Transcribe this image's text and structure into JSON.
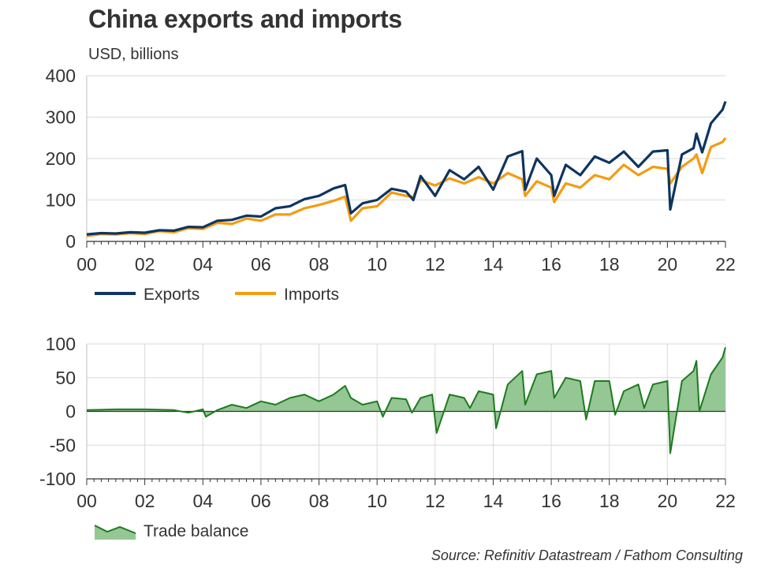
{
  "title": "China exports and imports",
  "subtitle": "USD, billions",
  "source": "Source: Refinitiv Datastream / Fathom Consulting",
  "colors": {
    "exports": "#0e3560",
    "imports": "#f39c12",
    "balance_line": "#1e7a1e",
    "balance_fill": "#94c794",
    "grid": "#d9d9d9",
    "axis": "#333333"
  },
  "chart_data": [
    {
      "type": "line",
      "ylim": [
        0,
        400
      ],
      "yticks": [
        "400",
        "300",
        "200",
        "100",
        "0"
      ],
      "xlim": [
        2000,
        2022
      ],
      "xticks": [
        "00",
        "02",
        "04",
        "06",
        "08",
        "10",
        "12",
        "14",
        "16",
        "18",
        "20",
        "22"
      ],
      "grid": true,
      "legend_position": "bottom-left",
      "series": [
        {
          "name": "Exports",
          "points": [
            [
              2000.0,
              17
            ],
            [
              2000.5,
              20
            ],
            [
              2001.0,
              19
            ],
            [
              2001.5,
              22
            ],
            [
              2002.0,
              21
            ],
            [
              2002.5,
              27
            ],
            [
              2003.0,
              26
            ],
            [
              2003.5,
              35
            ],
            [
              2004.0,
              34
            ],
            [
              2004.5,
              50
            ],
            [
              2005.0,
              52
            ],
            [
              2005.5,
              62
            ],
            [
              2006.0,
              60
            ],
            [
              2006.5,
              80
            ],
            [
              2007.0,
              85
            ],
            [
              2007.5,
              102
            ],
            [
              2008.0,
              110
            ],
            [
              2008.5,
              128
            ],
            [
              2008.9,
              136
            ],
            [
              2009.1,
              68
            ],
            [
              2009.5,
              92
            ],
            [
              2010.0,
              100
            ],
            [
              2010.5,
              127
            ],
            [
              2011.0,
              120
            ],
            [
              2011.25,
              100
            ],
            [
              2011.5,
              158
            ],
            [
              2012.0,
              110
            ],
            [
              2012.5,
              172
            ],
            [
              2013.0,
              150
            ],
            [
              2013.5,
              180
            ],
            [
              2014.0,
              125
            ],
            [
              2014.5,
              205
            ],
            [
              2015.0,
              218
            ],
            [
              2015.1,
              125
            ],
            [
              2015.5,
              200
            ],
            [
              2016.0,
              160
            ],
            [
              2016.1,
              110
            ],
            [
              2016.5,
              185
            ],
            [
              2017.0,
              160
            ],
            [
              2017.5,
              205
            ],
            [
              2018.0,
              190
            ],
            [
              2018.5,
              217
            ],
            [
              2019.0,
              180
            ],
            [
              2019.5,
              217
            ],
            [
              2020.0,
              220
            ],
            [
              2020.1,
              77
            ],
            [
              2020.5,
              210
            ],
            [
              2020.9,
              225
            ],
            [
              2021.0,
              260
            ],
            [
              2021.2,
              215
            ],
            [
              2021.5,
              285
            ],
            [
              2021.9,
              318
            ],
            [
              2022.0,
              338
            ]
          ]
        },
        {
          "name": "Imports",
          "points": [
            [
              2000.0,
              13
            ],
            [
              2000.5,
              18
            ],
            [
              2001.0,
              17
            ],
            [
              2001.5,
              20
            ],
            [
              2002.0,
              18
            ],
            [
              2002.5,
              25
            ],
            [
              2003.0,
              22
            ],
            [
              2003.5,
              32
            ],
            [
              2004.0,
              30
            ],
            [
              2004.5,
              45
            ],
            [
              2005.0,
              42
            ],
            [
              2005.5,
              55
            ],
            [
              2006.0,
              50
            ],
            [
              2006.5,
              65
            ],
            [
              2007.0,
              65
            ],
            [
              2007.5,
              80
            ],
            [
              2008.0,
              88
            ],
            [
              2008.5,
              98
            ],
            [
              2008.9,
              108
            ],
            [
              2009.1,
              50
            ],
            [
              2009.5,
              80
            ],
            [
              2010.0,
              85
            ],
            [
              2010.5,
              118
            ],
            [
              2011.0,
              110
            ],
            [
              2011.25,
              107
            ],
            [
              2011.5,
              148
            ],
            [
              2012.0,
              135
            ],
            [
              2012.5,
              152
            ],
            [
              2013.0,
              140
            ],
            [
              2013.5,
              155
            ],
            [
              2014.0,
              140
            ],
            [
              2014.5,
              165
            ],
            [
              2015.0,
              150
            ],
            [
              2015.1,
              110
            ],
            [
              2015.5,
              145
            ],
            [
              2016.0,
              130
            ],
            [
              2016.1,
              95
            ],
            [
              2016.5,
              140
            ],
            [
              2017.0,
              130
            ],
            [
              2017.5,
              160
            ],
            [
              2018.0,
              150
            ],
            [
              2018.5,
              185
            ],
            [
              2019.0,
              160
            ],
            [
              2019.5,
              180
            ],
            [
              2020.0,
              175
            ],
            [
              2020.1,
              140
            ],
            [
              2020.5,
              180
            ],
            [
              2020.9,
              200
            ],
            [
              2021.0,
              210
            ],
            [
              2021.2,
              165
            ],
            [
              2021.5,
              228
            ],
            [
              2021.9,
              240
            ],
            [
              2022.0,
              250
            ]
          ]
        }
      ]
    },
    {
      "type": "area",
      "ylim": [
        -100,
        100
      ],
      "yticks": [
        "100",
        "50",
        "0",
        "-50",
        "-100"
      ],
      "xlim": [
        2000,
        2022
      ],
      "xticks": [
        "00",
        "02",
        "04",
        "06",
        "08",
        "10",
        "12",
        "14",
        "16",
        "18",
        "20",
        "22"
      ],
      "grid": true,
      "legend_position": "bottom-left",
      "series": [
        {
          "name": "Trade balance",
          "points": [
            [
              2000.0,
              2
            ],
            [
              2001.0,
              3
            ],
            [
              2002.0,
              3
            ],
            [
              2003.0,
              2
            ],
            [
              2003.5,
              -2
            ],
            [
              2004.0,
              3
            ],
            [
              2004.1,
              -8
            ],
            [
              2004.5,
              2
            ],
            [
              2005.0,
              10
            ],
            [
              2005.5,
              5
            ],
            [
              2006.0,
              15
            ],
            [
              2006.5,
              10
            ],
            [
              2007.0,
              20
            ],
            [
              2007.5,
              25
            ],
            [
              2008.0,
              15
            ],
            [
              2008.5,
              25
            ],
            [
              2008.9,
              38
            ],
            [
              2009.1,
              20
            ],
            [
              2009.5,
              10
            ],
            [
              2010.0,
              15
            ],
            [
              2010.2,
              -8
            ],
            [
              2010.5,
              20
            ],
            [
              2011.0,
              18
            ],
            [
              2011.2,
              -2
            ],
            [
              2011.5,
              20
            ],
            [
              2011.9,
              25
            ],
            [
              2012.05,
              -32
            ],
            [
              2012.5,
              25
            ],
            [
              2013.0,
              20
            ],
            [
              2013.2,
              5
            ],
            [
              2013.5,
              30
            ],
            [
              2014.0,
              25
            ],
            [
              2014.1,
              -25
            ],
            [
              2014.5,
              40
            ],
            [
              2015.0,
              60
            ],
            [
              2015.1,
              10
            ],
            [
              2015.5,
              55
            ],
            [
              2016.0,
              60
            ],
            [
              2016.1,
              20
            ],
            [
              2016.5,
              50
            ],
            [
              2017.0,
              45
            ],
            [
              2017.2,
              -12
            ],
            [
              2017.5,
              45
            ],
            [
              2018.0,
              45
            ],
            [
              2018.2,
              -5
            ],
            [
              2018.5,
              30
            ],
            [
              2019.0,
              40
            ],
            [
              2019.2,
              5
            ],
            [
              2019.5,
              40
            ],
            [
              2020.0,
              45
            ],
            [
              2020.1,
              -62
            ],
            [
              2020.5,
              45
            ],
            [
              2020.9,
              60
            ],
            [
              2021.0,
              75
            ],
            [
              2021.1,
              0
            ],
            [
              2021.5,
              55
            ],
            [
              2021.9,
              80
            ],
            [
              2022.0,
              95
            ]
          ]
        }
      ]
    }
  ]
}
